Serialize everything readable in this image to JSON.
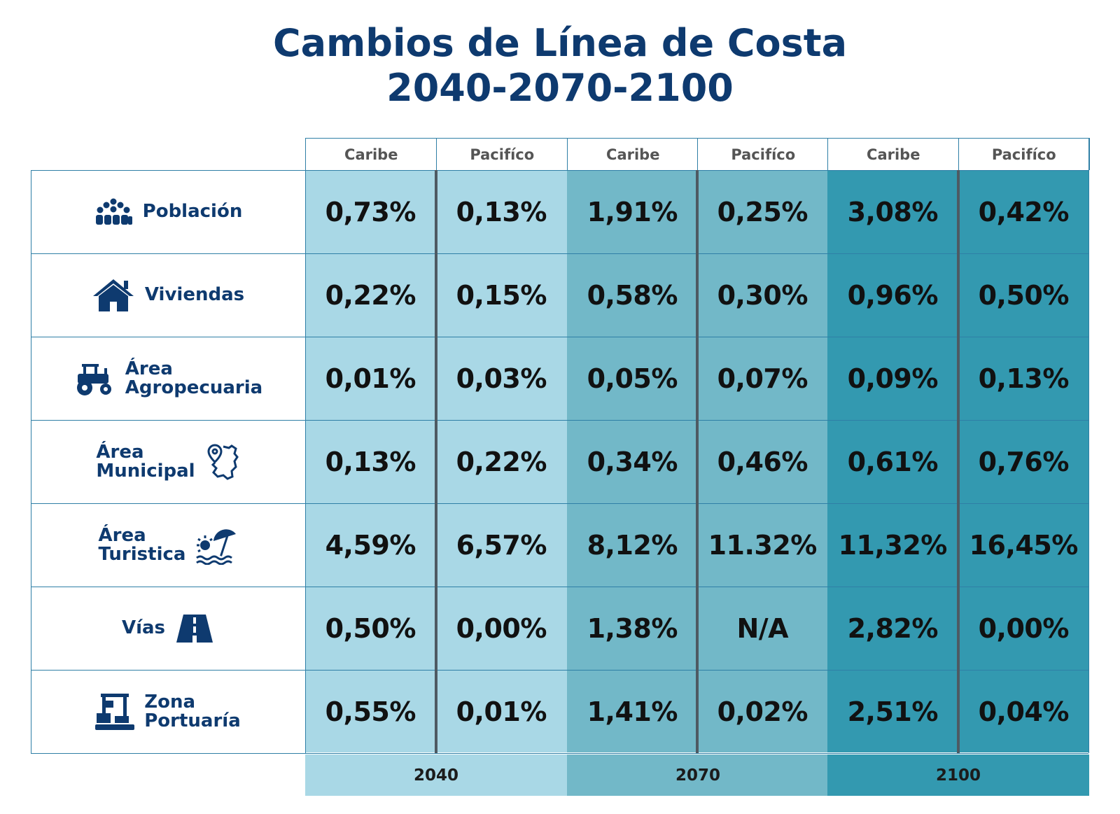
{
  "title_line1": "Cambios de Línea de Costa",
  "title_line2": "2040-2070-2100",
  "colors": {
    "title": "#0e3a6f",
    "band_2040": "#a9d8e6",
    "band_2070": "#72b8c8",
    "band_2100": "#3399b0",
    "grid": "#2f7fa6",
    "divider": "#4e5a63"
  },
  "chart_data": {
    "type": "table",
    "column_headers": [
      "Caribe",
      "Pacifíco",
      "Caribe",
      "Pacifíco",
      "Caribe",
      "Pacifíco"
    ],
    "year_groups": [
      "2040",
      "2070",
      "2100"
    ],
    "rows": [
      {
        "icon": "crowd-icon",
        "label_lines": [
          "Población"
        ],
        "values": [
          "0,73%",
          "0,13%",
          "1,91%",
          "0,25%",
          "3,08%",
          "0,42%"
        ]
      },
      {
        "icon": "house-icon",
        "label_lines": [
          "Viviendas"
        ],
        "values": [
          "0,22%",
          "0,15%",
          "0,58%",
          "0,30%",
          "0,96%",
          "0,50%"
        ]
      },
      {
        "icon": "tractor-icon",
        "label_lines": [
          "Área",
          "Agropecuaria"
        ],
        "values": [
          "0,01%",
          "0,03%",
          "0,05%",
          "0,07%",
          "0,09%",
          "0,13%"
        ]
      },
      {
        "icon": "map-pin-icon",
        "label_lines": [
          "Área",
          "Municipal"
        ],
        "values": [
          "0,13%",
          "0,22%",
          "0,34%",
          "0,46%",
          "0,61%",
          "0,76%"
        ]
      },
      {
        "icon": "beach-umbrella-icon",
        "label_lines": [
          "Área",
          "Turistica"
        ],
        "values": [
          "4,59%",
          "6,57%",
          "8,12%",
          "11.32%",
          "11,32%",
          "16,45%"
        ]
      },
      {
        "icon": "road-icon",
        "label_lines": [
          "Vías"
        ],
        "values": [
          "0,50%",
          "0,00%",
          "1,38%",
          "N/A",
          "2,82%",
          "0,00%"
        ]
      },
      {
        "icon": "port-crane-icon",
        "label_lines": [
          "Zona",
          "Portuaría"
        ],
        "values": [
          "0,55%",
          "0,01%",
          "1,41%",
          "0,02%",
          "2,51%",
          "0,04%"
        ]
      }
    ]
  }
}
